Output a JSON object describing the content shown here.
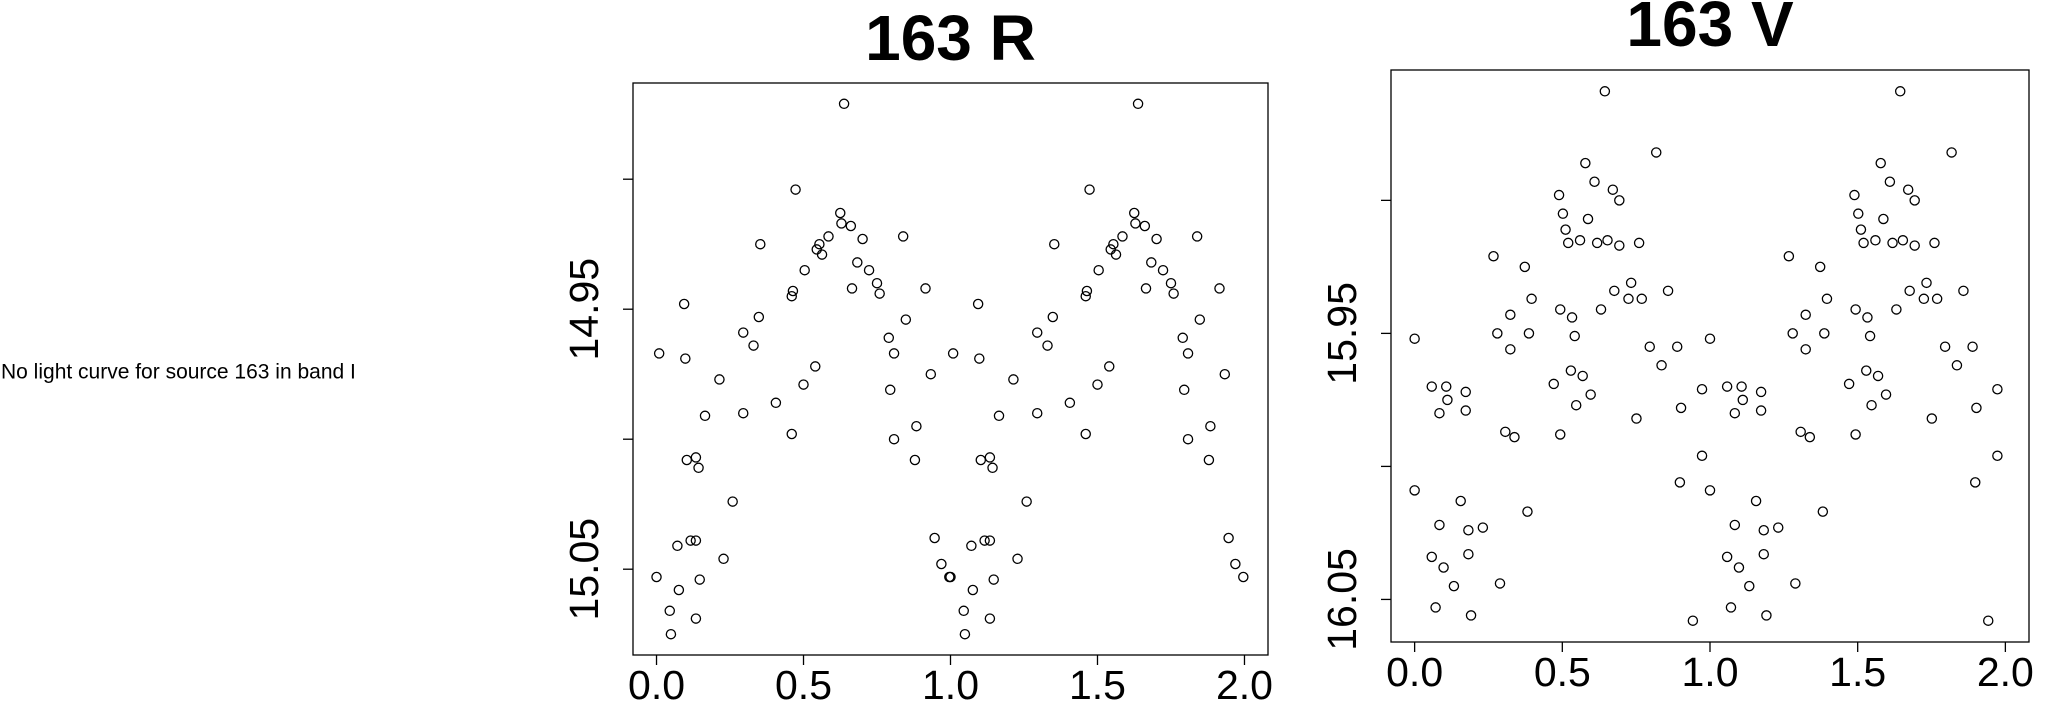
{
  "message": "No light curve for source 163 in band I",
  "chart_data": [
    {
      "type": "scatter",
      "title": "163 R",
      "color": "#000000",
      "x": [
        0.009,
        0,
        0.045,
        0.049,
        0.076,
        0.071,
        0.094,
        0.098,
        0.103,
        0.116,
        0.134,
        0.134,
        0.134,
        0.143,
        0.147,
        0.165,
        0.214,
        0.228,
        0.259,
        0.295,
        0.295,
        0.33,
        0.348,
        0.353,
        0.406,
        0.46,
        0.46,
        0.464,
        0.473,
        0.5,
        0.504,
        0.54,
        0.545,
        0.554,
        0.563,
        0.585,
        0.625,
        0.629,
        0.638,
        0.661,
        0.665,
        0.683,
        0.701,
        0.723,
        0.75,
        0.759,
        0.79,
        0.795,
        0.808,
        0.808,
        0.839,
        0.848,
        0.879,
        0.884,
        0.915,
        0.933,
        0.946,
        0.969,
        0.996,
        1.009,
        1,
        1.045,
        1.049,
        1.076,
        1.071,
        1.094,
        1.098,
        1.103,
        1.116,
        1.134,
        1.134,
        1.134,
        1.143,
        1.147,
        1.165,
        1.214,
        1.228,
        1.259,
        1.295,
        1.295,
        1.33,
        1.348,
        1.353,
        1.406,
        1.46,
        1.46,
        1.464,
        1.473,
        1.5,
        1.504,
        1.54,
        1.545,
        1.554,
        1.563,
        1.585,
        1.625,
        1.629,
        1.638,
        1.661,
        1.665,
        1.683,
        1.701,
        1.723,
        1.75,
        1.759,
        1.79,
        1.795,
        1.808,
        1.808,
        1.839,
        1.848,
        1.879,
        1.884,
        1.915,
        1.933,
        1.946,
        1.969,
        1.996
      ],
      "y": [
        14.967,
        15.053,
        15.066,
        15.075,
        15.058,
        15.041,
        14.948,
        14.969,
        15.008,
        15.039,
        15.039,
        15.007,
        15.069,
        15.011,
        15.054,
        14.991,
        14.977,
        15.046,
        15.024,
        14.959,
        14.99,
        14.964,
        14.953,
        14.925,
        14.986,
        14.998,
        14.945,
        14.943,
        14.904,
        14.979,
        14.935,
        14.972,
        14.927,
        14.925,
        14.929,
        14.922,
        14.913,
        14.917,
        14.871,
        14.918,
        14.942,
        14.932,
        14.923,
        14.935,
        14.94,
        14.944,
        14.961,
        14.981,
        15,
        14.967,
        14.922,
        14.954,
        15.008,
        14.995,
        14.942,
        14.975,
        15.038,
        15.048,
        15.053,
        14.967,
        15.053,
        15.066,
        15.075,
        15.058,
        15.041,
        14.948,
        14.969,
        15.008,
        15.039,
        15.039,
        15.007,
        15.069,
        15.011,
        15.054,
        14.991,
        14.977,
        15.046,
        15.024,
        14.959,
        14.99,
        14.964,
        14.953,
        14.925,
        14.986,
        14.998,
        14.945,
        14.943,
        14.904,
        14.979,
        14.935,
        14.972,
        14.927,
        14.925,
        14.929,
        14.922,
        14.913,
        14.917,
        14.871,
        14.918,
        14.942,
        14.932,
        14.923,
        14.935,
        14.94,
        14.944,
        14.961,
        14.981,
        15,
        14.967,
        14.922,
        14.954,
        15.008,
        14.995,
        14.942,
        14.975,
        15.038,
        15.048,
        15.053
      ],
      "xlim": [
        -0.08,
        2.08
      ],
      "ylim": [
        15.083,
        14.863
      ],
      "xticks": [
        {
          "value": 0,
          "label": "0.0"
        },
        0.5,
        {
          "value": 1,
          "label": "1.0"
        },
        1.5,
        {
          "value": 2,
          "label": "2.0"
        }
      ],
      "yticks": [
        14.95,
        15.05
      ],
      "yticks_unlabeled": [
        14.9,
        15.0
      ]
    },
    {
      "type": "scatter",
      "title": "163 V",
      "color": "#000000",
      "x": [
        0,
        0,
        0.058,
        0.058,
        0.071,
        0.084,
        0.084,
        0.098,
        0.107,
        0.111,
        0.133,
        0.156,
        0.173,
        0.173,
        0.182,
        0.182,
        0.191,
        0.231,
        0.267,
        0.28,
        0.289,
        0.307,
        0.324,
        0.324,
        0.338,
        0.373,
        0.382,
        0.387,
        0.396,
        0.471,
        0.489,
        0.493,
        0.493,
        0.502,
        0.511,
        0.52,
        0.529,
        0.533,
        0.542,
        0.547,
        0.56,
        0.569,
        0.578,
        0.587,
        0.596,
        0.609,
        0.618,
        0.631,
        0.644,
        0.653,
        0.671,
        0.676,
        0.693,
        0.693,
        0.724,
        0.733,
        0.751,
        0.76,
        0.769,
        0.796,
        0.818,
        0.836,
        0.858,
        0.889,
        0.898,
        0.902,
        0.942,
        0.973,
        0.973,
        1,
        1,
        1.058,
        1.058,
        1.071,
        1.084,
        1.084,
        1.098,
        1.107,
        1.111,
        1.133,
        1.156,
        1.173,
        1.173,
        1.182,
        1.182,
        1.191,
        1.231,
        1.267,
        1.28,
        1.289,
        1.307,
        1.324,
        1.324,
        1.338,
        1.373,
        1.382,
        1.387,
        1.396,
        1.471,
        1.489,
        1.493,
        1.493,
        1.502,
        1.511,
        1.52,
        1.529,
        1.533,
        1.542,
        1.547,
        1.56,
        1.569,
        1.578,
        1.587,
        1.596,
        1.609,
        1.618,
        1.631,
        1.644,
        1.653,
        1.671,
        1.676,
        1.693,
        1.693,
        1.724,
        1.733,
        1.751,
        1.76,
        1.769,
        1.796,
        1.818,
        1.836,
        1.858,
        1.889,
        1.898,
        1.902,
        1.942,
        1.973,
        1.973
      ],
      "y": [
        15.952,
        16.009,
        15.97,
        16.034,
        16.053,
        16.022,
        15.98,
        16.038,
        15.97,
        15.975,
        16.045,
        16.013,
        15.972,
        15.979,
        16.024,
        16.033,
        16.056,
        16.023,
        15.921,
        15.95,
        16.044,
        15.987,
        15.943,
        15.956,
        15.989,
        15.925,
        16.017,
        15.95,
        15.937,
        15.969,
        15.898,
        15.988,
        15.941,
        15.905,
        15.911,
        15.916,
        15.964,
        15.944,
        15.951,
        15.977,
        15.915,
        15.966,
        15.886,
        15.907,
        15.973,
        15.893,
        15.916,
        15.941,
        15.859,
        15.915,
        15.896,
        15.934,
        15.9,
        15.917,
        15.937,
        15.931,
        15.982,
        15.916,
        15.937,
        15.955,
        15.882,
        15.962,
        15.934,
        15.955,
        16.006,
        15.978,
        16.058,
        15.971,
        15.996,
        15.952,
        16.009,
        15.97,
        16.034,
        16.053,
        16.022,
        15.98,
        16.038,
        15.97,
        15.975,
        16.045,
        16.013,
        15.972,
        15.979,
        16.024,
        16.033,
        16.056,
        16.023,
        15.921,
        15.95,
        16.044,
        15.987,
        15.943,
        15.956,
        15.989,
        15.925,
        16.017,
        15.95,
        15.937,
        15.969,
        15.898,
        15.988,
        15.941,
        15.905,
        15.911,
        15.916,
        15.964,
        15.944,
        15.951,
        15.977,
        15.915,
        15.966,
        15.886,
        15.907,
        15.973,
        15.893,
        15.916,
        15.941,
        15.859,
        15.915,
        15.896,
        15.934,
        15.9,
        15.917,
        15.937,
        15.931,
        15.982,
        15.916,
        15.937,
        15.955,
        15.882,
        15.962,
        15.934,
        15.955,
        16.006,
        15.978,
        16.058,
        15.971,
        15.996
      ],
      "xlim": [
        -0.08,
        2.08
      ],
      "ylim": [
        16.066,
        15.851
      ],
      "xticks": [
        {
          "value": 0,
          "label": "0.0"
        },
        0.5,
        {
          "value": 1,
          "label": "1.0"
        },
        1.5,
        {
          "value": 2,
          "label": "2.0"
        }
      ],
      "yticks": [
        15.95,
        16.05
      ],
      "yticks_unlabeled": [
        15.9,
        16.0
      ]
    }
  ]
}
